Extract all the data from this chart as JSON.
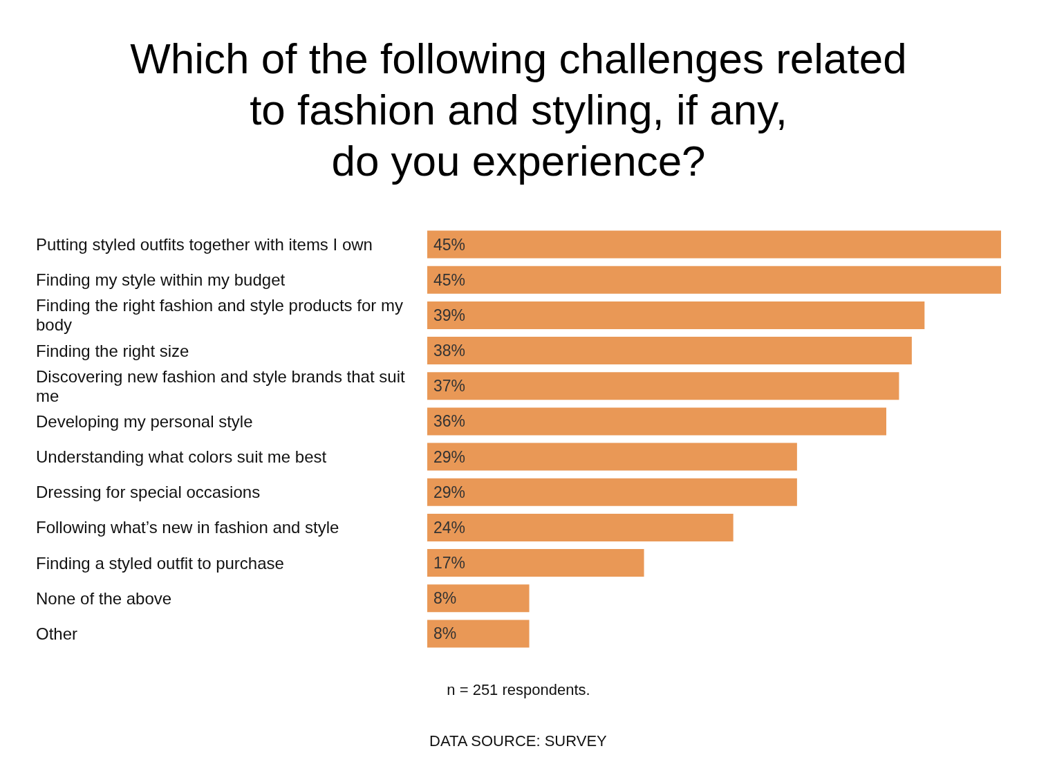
{
  "chart_data": {
    "type": "bar",
    "orientation": "horizontal",
    "title": "Which of the following challenges related\nto fashion and styling, if any,\ndo you experience?",
    "categories": [
      "Putting styled outfits together with items I own",
      "Finding my style within my budget",
      "Finding the right fashion and style products for my body",
      "Finding the right size",
      "Discovering new fashion and style brands that suit me",
      "Developing my personal style",
      "Understanding what colors suit me best",
      "Dressing for special occasions",
      "Following what’s new in fashion and style",
      "Finding a styled outfit to purchase",
      "None of the above",
      "Other"
    ],
    "values": [
      45,
      45,
      39,
      38,
      37,
      36,
      29,
      29,
      24,
      17,
      8,
      8
    ],
    "value_labels": [
      "45%",
      "45%",
      "39%",
      "38%",
      "37%",
      "36%",
      "29%",
      "29%",
      "24%",
      "17%",
      "8%",
      "8%"
    ],
    "color": "#e99856",
    "annotations": [
      "n = 251 respondents.",
      "DATA SOURCE: SURVEY"
    ]
  }
}
